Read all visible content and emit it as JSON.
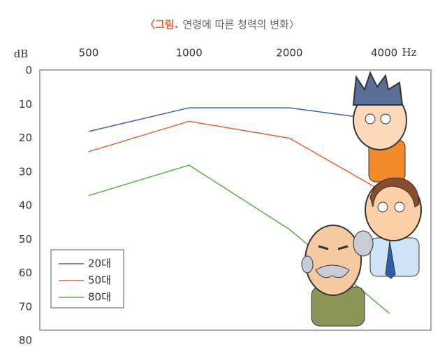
{
  "chart_data": {
    "type": "line",
    "title_label": "〈그림.",
    "title": "연령에 따른 청력의 변화〉",
    "x_label": "Hz",
    "y_label": "dB",
    "categories": [
      "500",
      "1000",
      "2000",
      "4000"
    ],
    "series": [
      {
        "name": "20대",
        "color": "#3b5fb4",
        "values": [
          18,
          11,
          11,
          15
        ]
      },
      {
        "name": "50대",
        "color": "#e2643c",
        "values": [
          24,
          15,
          20,
          37
        ]
      },
      {
        "name": "80대",
        "color": "#5bb14b",
        "values": [
          37,
          28,
          47,
          72
        ]
      }
    ],
    "ylim": [
      0,
      80
    ],
    "yticks": [
      0,
      10,
      20,
      30,
      40,
      50,
      60,
      70,
      80
    ],
    "y_inverted": true,
    "legend": "lower-left"
  }
}
